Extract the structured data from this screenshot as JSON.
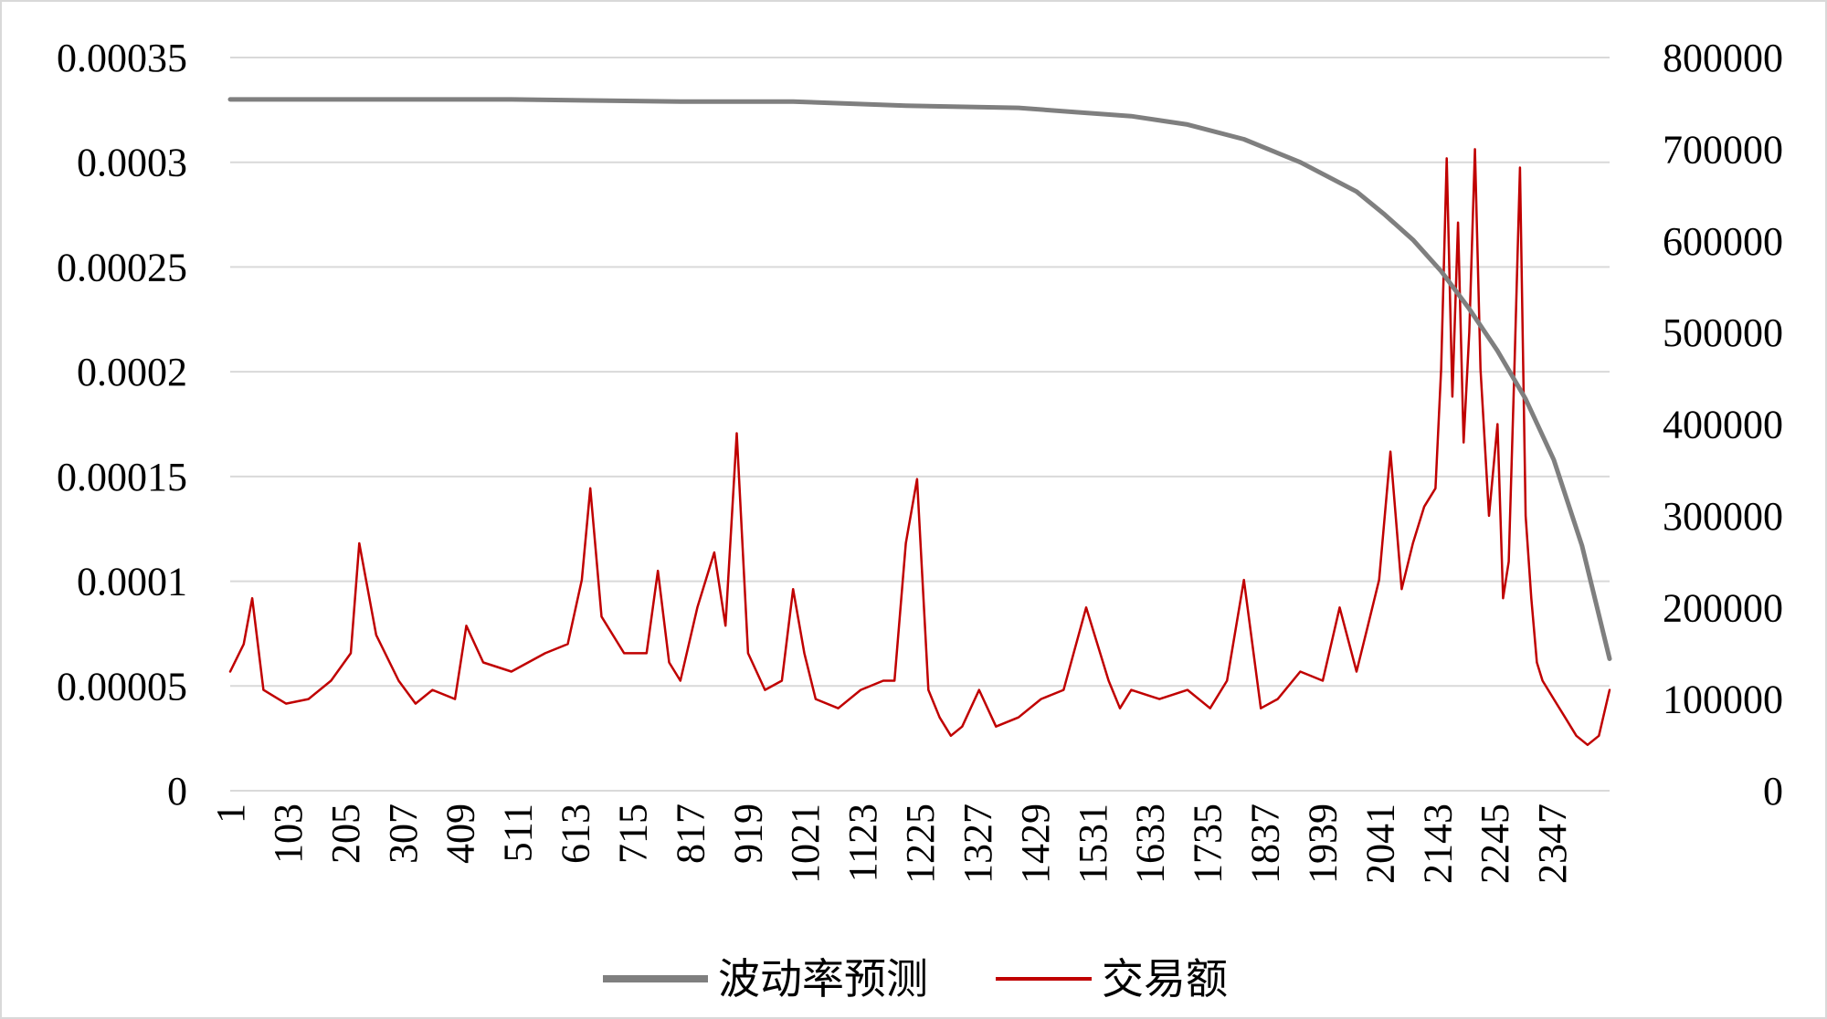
{
  "chart_data": {
    "type": "line",
    "x_start": 1,
    "x_end": 2449,
    "x_tick_labels": [
      "1",
      "103",
      "205",
      "307",
      "409",
      "511",
      "613",
      "715",
      "817",
      "919",
      "1021",
      "1123",
      "1225",
      "1327",
      "1429",
      "1531",
      "1633",
      "1735",
      "1837",
      "1939",
      "2041",
      "2143",
      "2245",
      "2347"
    ],
    "y_left": {
      "range": [
        0,
        0.00035
      ],
      "tick_labels": [
        "0",
        "0.00005",
        "0.0001",
        "0.00015",
        "0.0002",
        "0.00025",
        "0.0003",
        "0.00035"
      ]
    },
    "y_right": {
      "range": [
        0,
        800000
      ],
      "tick_labels": [
        "0",
        "100000",
        "200000",
        "300000",
        "400000",
        "500000",
        "600000",
        "700000",
        "800000"
      ]
    },
    "grid": true,
    "legend_position": "bottom",
    "series": [
      {
        "name": "波动率预测",
        "axis": "left",
        "color": "#7f7f7f",
        "x": [
          1,
          500,
          800,
          1000,
          1200,
          1400,
          1500,
          1600,
          1700,
          1800,
          1900,
          2000,
          2050,
          2100,
          2150,
          2200,
          2250,
          2300,
          2350,
          2400,
          2449
        ],
        "values": [
          0.00033,
          0.00033,
          0.000329,
          0.000329,
          0.000327,
          0.000326,
          0.000324,
          0.000322,
          0.000318,
          0.000311,
          0.0003,
          0.000286,
          0.000275,
          0.000263,
          0.000248,
          0.00023,
          0.00021,
          0.000187,
          0.000158,
          0.000117,
          6.3e-05
        ]
      },
      {
        "name": "交易额",
        "axis": "right",
        "color": "#c00000",
        "x": [
          1,
          25,
          40,
          60,
          100,
          140,
          180,
          215,
          230,
          260,
          300,
          330,
          360,
          400,
          420,
          450,
          500,
          560,
          600,
          625,
          640,
          660,
          700,
          740,
          760,
          780,
          800,
          830,
          860,
          880,
          900,
          920,
          950,
          980,
          1000,
          1020,
          1040,
          1080,
          1120,
          1160,
          1180,
          1200,
          1220,
          1240,
          1260,
          1280,
          1300,
          1330,
          1360,
          1400,
          1440,
          1480,
          1520,
          1540,
          1560,
          1580,
          1600,
          1650,
          1700,
          1740,
          1770,
          1800,
          1830,
          1860,
          1900,
          1940,
          1970,
          2000,
          2020,
          2040,
          2060,
          2080,
          2100,
          2120,
          2140,
          2150,
          2160,
          2170,
          2180,
          2190,
          2200,
          2210,
          2220,
          2235,
          2250,
          2260,
          2270,
          2280,
          2290,
          2300,
          2310,
          2320,
          2330,
          2350,
          2370,
          2390,
          2410,
          2430,
          2449
        ],
        "values": [
          130000,
          160000,
          210000,
          110000,
          95000,
          100000,
          120000,
          150000,
          270000,
          170000,
          120000,
          95000,
          110000,
          100000,
          180000,
          140000,
          130000,
          150000,
          160000,
          230000,
          330000,
          190000,
          150000,
          150000,
          240000,
          140000,
          120000,
          200000,
          260000,
          180000,
          390000,
          150000,
          110000,
          120000,
          220000,
          150000,
          100000,
          90000,
          110000,
          120000,
          120000,
          270000,
          340000,
          110000,
          80000,
          60000,
          70000,
          110000,
          70000,
          80000,
          100000,
          110000,
          200000,
          160000,
          120000,
          90000,
          110000,
          100000,
          110000,
          90000,
          120000,
          230000,
          90000,
          100000,
          130000,
          120000,
          200000,
          130000,
          180000,
          230000,
          370000,
          220000,
          270000,
          310000,
          330000,
          460000,
          690000,
          430000,
          620000,
          380000,
          500000,
          700000,
          460000,
          300000,
          400000,
          210000,
          250000,
          460000,
          680000,
          300000,
          210000,
          140000,
          120000,
          100000,
          80000,
          60000,
          50000,
          60000,
          110000
        ]
      }
    ]
  }
}
